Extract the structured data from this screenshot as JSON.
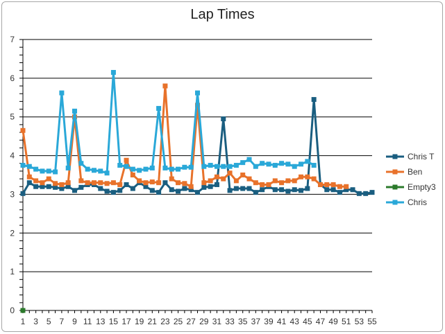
{
  "chart_data": {
    "type": "line",
    "title": "Lap Times",
    "xlabel": "",
    "ylabel": "",
    "ylim": [
      0,
      7
    ],
    "yticks": [
      0,
      1,
      2,
      3,
      4,
      5,
      6,
      7
    ],
    "xlim": [
      1,
      55
    ],
    "xtick_labels": [
      1,
      3,
      5,
      7,
      9,
      11,
      13,
      15,
      17,
      19,
      21,
      23,
      25,
      27,
      29,
      31,
      33,
      35,
      37,
      39,
      41,
      43,
      45,
      47,
      49,
      51,
      53,
      55
    ],
    "grid": "horizontal",
    "legend_position": "right",
    "series": [
      {
        "name": "Chris T",
        "color": "#1a5e80",
        "x": [
          1,
          2,
          3,
          4,
          5,
          6,
          7,
          8,
          9,
          10,
          11,
          12,
          13,
          14,
          15,
          16,
          17,
          18,
          19,
          20,
          21,
          22,
          23,
          24,
          25,
          26,
          27,
          28,
          29,
          30,
          31,
          32,
          33,
          34,
          35,
          36,
          37,
          38,
          39,
          40,
          41,
          42,
          43,
          44,
          45,
          46,
          47,
          48,
          49,
          50,
          51,
          52,
          53,
          54,
          55
        ],
        "values": [
          3.02,
          3.3,
          3.2,
          3.2,
          3.2,
          3.18,
          3.15,
          3.2,
          3.1,
          3.18,
          3.25,
          3.25,
          3.15,
          3.08,
          3.05,
          3.1,
          3.25,
          3.15,
          3.3,
          3.2,
          3.1,
          3.05,
          3.3,
          3.12,
          3.08,
          3.15,
          3.12,
          3.05,
          3.18,
          3.2,
          3.25,
          4.95,
          3.1,
          3.15,
          3.15,
          3.15,
          3.05,
          3.12,
          3.2,
          3.12,
          3.12,
          3.08,
          3.12,
          3.1,
          3.15,
          5.45,
          3.25,
          3.12,
          3.12,
          3.05,
          3.12,
          3.12,
          3.02,
          3.02,
          3.05
        ]
      },
      {
        "name": "Ben",
        "color": "#e8722b",
        "x": [
          1,
          2,
          3,
          4,
          5,
          6,
          7,
          8,
          9,
          10,
          11,
          12,
          13,
          14,
          15,
          16,
          17,
          18,
          19,
          20,
          21,
          22,
          23,
          24,
          25,
          26,
          27,
          28,
          29,
          30,
          31,
          32,
          33,
          34,
          35,
          36,
          37,
          38,
          39,
          40,
          41,
          42,
          43,
          44,
          45,
          46,
          47,
          48,
          49,
          50,
          51
        ],
        "values": [
          4.65,
          3.45,
          3.35,
          3.3,
          3.4,
          3.28,
          3.25,
          3.3,
          5.0,
          3.35,
          3.3,
          3.3,
          3.3,
          3.28,
          3.3,
          3.25,
          3.88,
          3.5,
          3.35,
          3.3,
          3.32,
          3.3,
          5.8,
          3.4,
          3.3,
          3.28,
          3.2,
          5.3,
          3.3,
          3.35,
          3.45,
          3.4,
          3.55,
          3.35,
          3.5,
          3.4,
          3.3,
          3.25,
          3.25,
          3.35,
          3.3,
          3.35,
          3.35,
          3.45,
          3.45,
          3.4,
          3.25,
          3.25,
          3.25,
          3.2,
          3.2
        ]
      },
      {
        "name": "Empty3",
        "color": "#2b7a2b",
        "x": [
          1
        ],
        "values": [
          0
        ]
      },
      {
        "name": "Chris",
        "color": "#2aa8d8",
        "x": [
          1,
          2,
          3,
          4,
          5,
          6,
          7,
          8,
          9,
          10,
          11,
          12,
          13,
          14,
          15,
          16,
          17,
          18,
          19,
          20,
          21,
          22,
          23,
          24,
          25,
          26,
          27,
          28,
          29,
          30,
          31,
          32,
          33,
          34,
          35,
          36,
          37,
          38,
          39,
          40,
          41,
          42,
          43,
          44,
          45,
          46
        ],
        "values": [
          3.75,
          3.72,
          3.65,
          3.6,
          3.6,
          3.58,
          5.62,
          3.68,
          5.15,
          3.8,
          3.65,
          3.62,
          3.6,
          3.55,
          6.15,
          3.75,
          3.72,
          3.65,
          3.62,
          3.65,
          3.68,
          5.22,
          3.68,
          3.65,
          3.65,
          3.7,
          3.7,
          5.62,
          3.72,
          3.75,
          3.72,
          3.72,
          3.72,
          3.75,
          3.82,
          3.9,
          3.72,
          3.8,
          3.78,
          3.75,
          3.8,
          3.78,
          3.72,
          3.78,
          3.85,
          3.75
        ]
      }
    ]
  }
}
